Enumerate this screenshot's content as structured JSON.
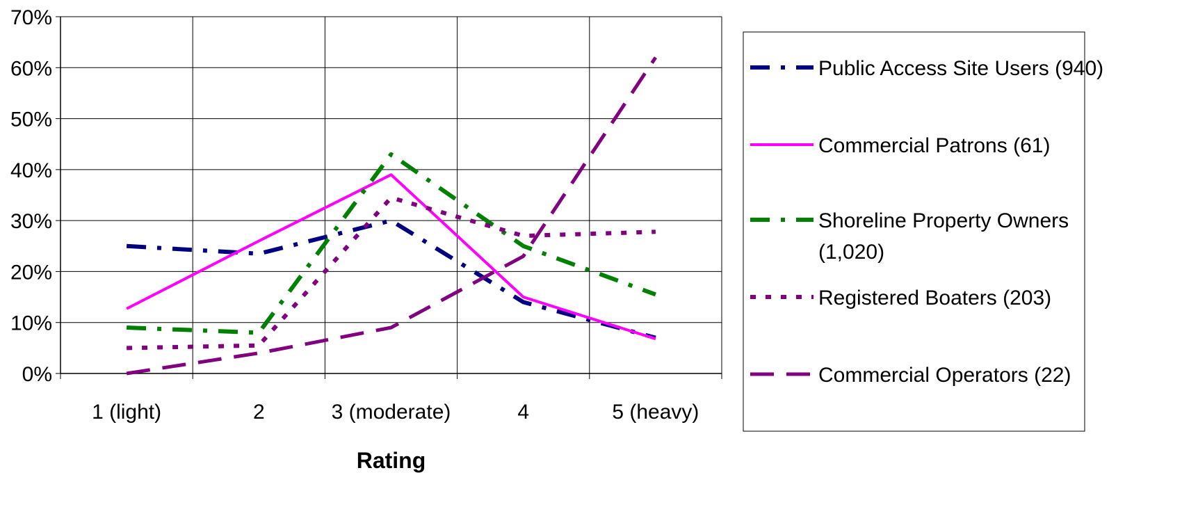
{
  "chart_data": {
    "type": "line",
    "xlabel": "Rating",
    "ylabel": "",
    "categories": [
      "1 (light)",
      "2",
      "3 (moderate)",
      "4",
      "5 (heavy)"
    ],
    "ylim": [
      0,
      0.7
    ],
    "yticks": [
      0,
      0.1,
      0.2,
      0.3,
      0.4,
      0.5,
      0.6,
      0.7
    ],
    "ytick_labels": [
      "0%",
      "10%",
      "20%",
      "30%",
      "40%",
      "50%",
      "60%",
      "70%"
    ],
    "grid": true,
    "legend_position": "right",
    "series": [
      {
        "name": "Public Access Site Users (940)",
        "color": "#000080",
        "style": "dash-dot",
        "values": [
          0.25,
          0.235,
          0.3,
          0.14,
          0.07
        ]
      },
      {
        "name": "Commercial Patrons (61)",
        "color": "#FF00FF",
        "style": "solid",
        "values": [
          0.127,
          0.26,
          0.39,
          0.15,
          0.068
        ]
      },
      {
        "name": "Shoreline Property Owners (1,020)",
        "color": "#008000",
        "style": "dash-dot",
        "values": [
          0.09,
          0.08,
          0.43,
          0.25,
          0.155
        ]
      },
      {
        "name": "Registered Boaters (203)",
        "color": "#800080",
        "style": "dotted",
        "values": [
          0.05,
          0.055,
          0.345,
          0.27,
          0.278
        ]
      },
      {
        "name": "Commercial Operators (22)",
        "color": "#800080",
        "style": "long-dash",
        "values": [
          0.0,
          0.04,
          0.09,
          0.23,
          0.62
        ]
      }
    ]
  }
}
